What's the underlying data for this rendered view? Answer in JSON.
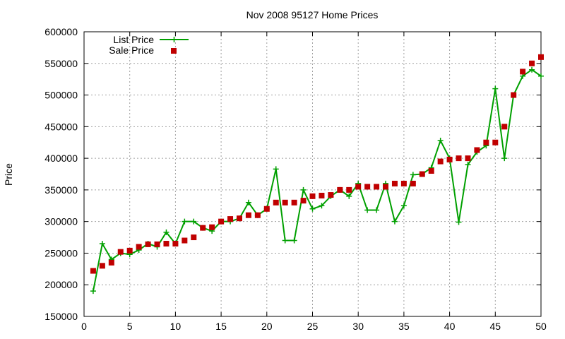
{
  "chart_data": {
    "type": "line",
    "title": "Nov 2008 95127 Home Prices",
    "xlabel": "",
    "ylabel": "Price",
    "xlim": [
      0,
      50
    ],
    "ylim": [
      150000,
      600000
    ],
    "xticks": [
      0,
      5,
      10,
      15,
      20,
      25,
      30,
      35,
      40,
      45,
      50
    ],
    "yticks": [
      150000,
      200000,
      250000,
      300000,
      350000,
      400000,
      450000,
      500000,
      550000,
      600000
    ],
    "grid": true,
    "legend_position": "top-left",
    "x": [
      1,
      2,
      3,
      4,
      5,
      6,
      7,
      8,
      9,
      10,
      11,
      12,
      13,
      14,
      15,
      16,
      17,
      18,
      19,
      20,
      21,
      22,
      23,
      24,
      25,
      26,
      27,
      28,
      29,
      30,
      31,
      32,
      33,
      34,
      35,
      36,
      37,
      38,
      39,
      40,
      41,
      42,
      43,
      44,
      45,
      46,
      47,
      48,
      49,
      50
    ],
    "series": [
      {
        "name": "List Price",
        "style": "linespoints",
        "color": "#00a000",
        "values": [
          190000,
          265000,
          240000,
          250000,
          248000,
          255000,
          265000,
          260000,
          283000,
          265000,
          300000,
          300000,
          290000,
          285000,
          300000,
          300000,
          305000,
          330000,
          310000,
          320000,
          383000,
          270000,
          270000,
          350000,
          320000,
          325000,
          340000,
          350000,
          340000,
          360000,
          318000,
          318000,
          360000,
          300000,
          325000,
          374000,
          375000,
          385000,
          428000,
          400000,
          299000,
          390000,
          410000,
          420000,
          510000,
          400000,
          500000,
          530000,
          540000,
          530000
        ]
      },
      {
        "name": "Sale Price",
        "style": "points",
        "color": "#c00000",
        "values": [
          222000,
          230000,
          235000,
          252000,
          254000,
          260000,
          264000,
          264000,
          265000,
          265000,
          270000,
          275000,
          290000,
          291000,
          300000,
          304000,
          305000,
          310000,
          310000,
          320000,
          330000,
          330000,
          330000,
          333000,
          340000,
          341000,
          342000,
          350000,
          350000,
          355000,
          355000,
          355000,
          355000,
          360000,
          360000,
          360000,
          375000,
          380000,
          395000,
          398000,
          400000,
          400000,
          413000,
          425000,
          425000,
          450000,
          500000,
          537000,
          550000,
          560000
        ]
      }
    ]
  }
}
